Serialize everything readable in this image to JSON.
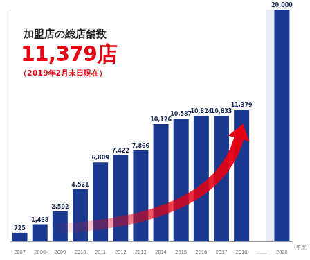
{
  "chart_data": {
    "type": "bar",
    "title": "加盟店の総店舗数",
    "subtitle": "11,379店",
    "annotation": "（2019年2月末日現在）",
    "x_label": "(年度)",
    "categories": [
      "2007",
      "2008",
      "2009",
      "2010",
      "2011",
      "2012",
      "2013",
      "2014",
      "2015",
      "2016",
      "2017",
      "2018",
      "……",
      "2020"
    ],
    "values": [
      725,
      1468,
      2592,
      4521,
      6809,
      7422,
      7866,
      10126,
      10587,
      10824,
      10833,
      11379,
      null,
      20000
    ],
    "value_labels": [
      "725",
      "1,468",
      "2,592",
      "4,521",
      "6,809",
      "7,422",
      "7,866",
      "10,126",
      "10,587",
      "10,824",
      "10,833",
      "11,379",
      null,
      "20,000"
    ],
    "color": "#1b3a8f",
    "ylim": [
      0,
      20000
    ],
    "grid": false,
    "data_labels": true,
    "tick_labels": "x"
  }
}
